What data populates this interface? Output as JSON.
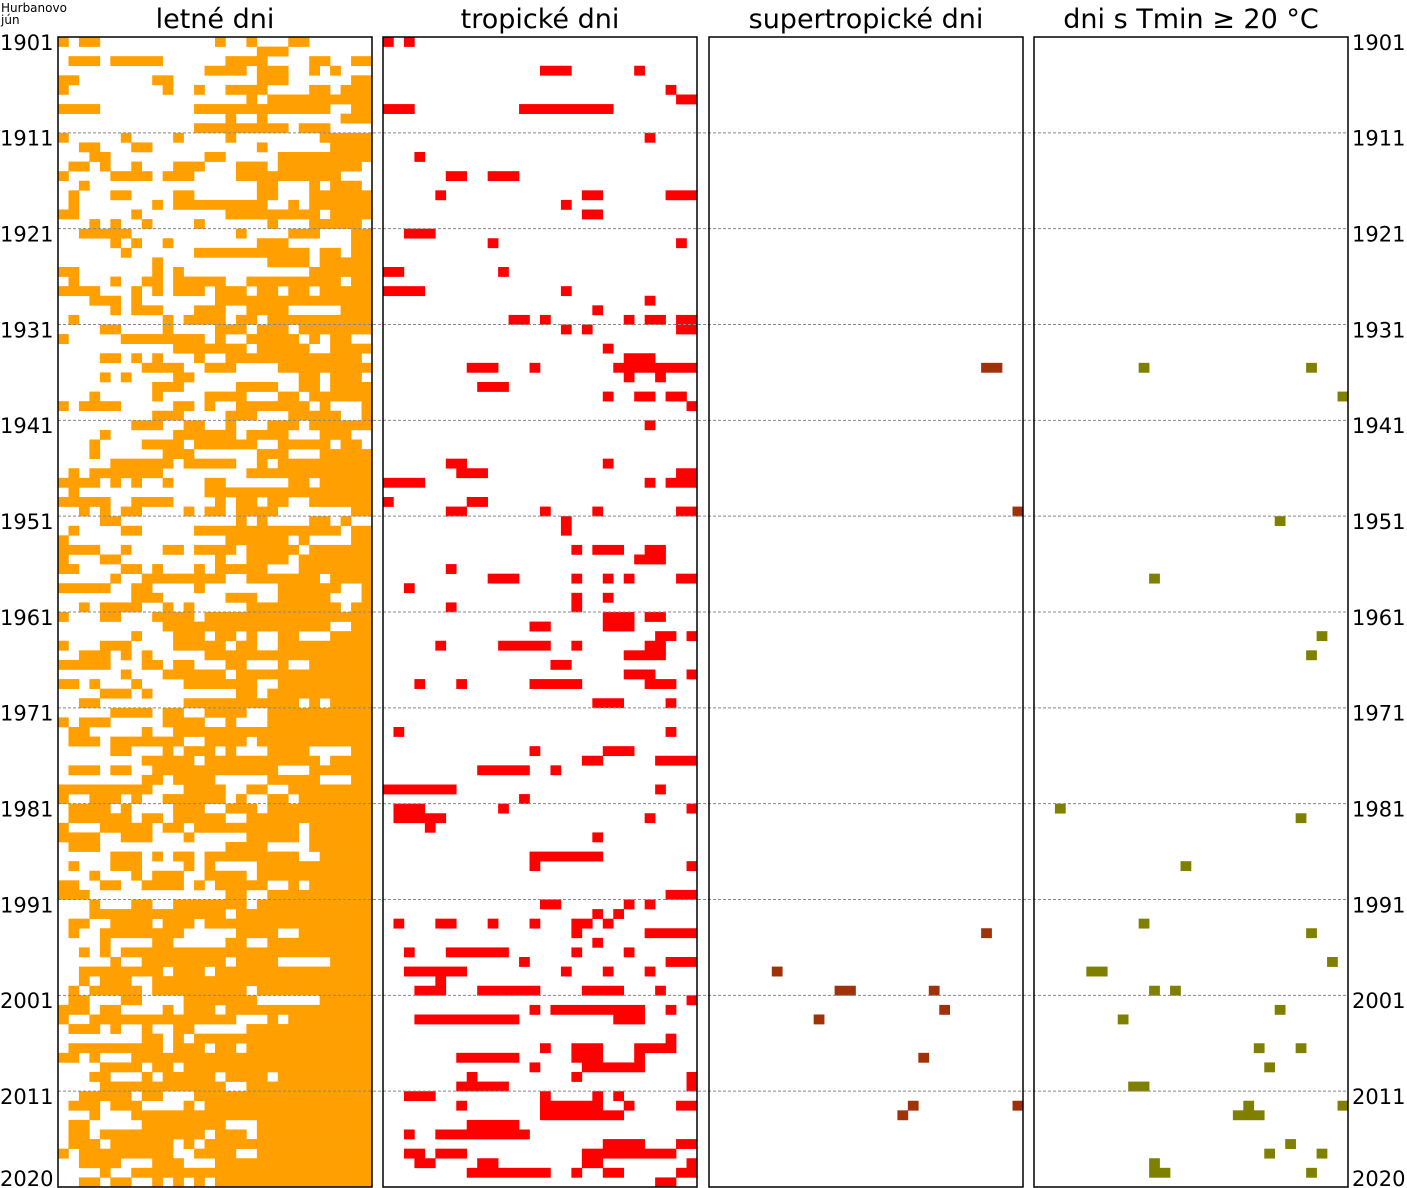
{
  "chart_data": {
    "type": "heatmap",
    "station": "Hurbanovo",
    "month": "jún",
    "years": [
      1901,
      2020
    ],
    "days": [
      1,
      30
    ],
    "year_tick_labels": [
      "1901",
      "1911",
      "1921",
      "1931",
      "1941",
      "1951",
      "1961",
      "1971",
      "1981",
      "1991",
      "2001",
      "2011",
      "2020"
    ],
    "grid": "dashed horizontal every 10 years",
    "panels": [
      {
        "title": "letné dni",
        "color": "#ff9f00",
        "fill_note_density": 0.45
      },
      {
        "title": "tropické dni",
        "color": "#ff0000",
        "cells": [
          [
            1901,
            1,
            1
          ],
          [
            1901,
            3,
            3
          ],
          [
            1904,
            16,
            18
          ],
          [
            1904,
            25,
            25
          ],
          [
            1906,
            28,
            28
          ],
          [
            1907,
            29,
            30
          ],
          [
            1908,
            1,
            3
          ],
          [
            1908,
            14,
            22
          ],
          [
            1911,
            26,
            26
          ],
          [
            1913,
            4,
            4
          ],
          [
            1915,
            7,
            8
          ],
          [
            1915,
            11,
            13
          ],
          [
            1917,
            6,
            6
          ],
          [
            1917,
            20,
            21
          ],
          [
            1917,
            28,
            30
          ],
          [
            1918,
            18,
            18
          ],
          [
            1919,
            20,
            21
          ],
          [
            1921,
            3,
            5
          ],
          [
            1922,
            11,
            11
          ],
          [
            1922,
            29,
            29
          ],
          [
            1925,
            1,
            2
          ],
          [
            1925,
            12,
            12
          ],
          [
            1927,
            1,
            4
          ],
          [
            1927,
            18,
            18
          ],
          [
            1928,
            26,
            26
          ],
          [
            1929,
            21,
            21
          ],
          [
            1930,
            13,
            14
          ],
          [
            1930,
            16,
            16
          ],
          [
            1930,
            24,
            24
          ],
          [
            1930,
            26,
            27
          ],
          [
            1930,
            29,
            30
          ],
          [
            1931,
            18,
            18
          ],
          [
            1931,
            20,
            20
          ],
          [
            1931,
            29,
            30
          ],
          [
            1933,
            22,
            22
          ],
          [
            1934,
            24,
            26
          ],
          [
            1935,
            9,
            11
          ],
          [
            1935,
            15,
            15
          ],
          [
            1935,
            23,
            30
          ],
          [
            1936,
            24,
            24
          ],
          [
            1936,
            27,
            27
          ],
          [
            1937,
            10,
            12
          ],
          [
            1938,
            22,
            22
          ],
          [
            1938,
            25,
            26
          ],
          [
            1938,
            28,
            29
          ],
          [
            1939,
            30,
            30
          ],
          [
            1941,
            26,
            26
          ],
          [
            1945,
            7,
            8
          ],
          [
            1945,
            22,
            22
          ],
          [
            1946,
            8,
            10
          ],
          [
            1946,
            29,
            30
          ],
          [
            1947,
            1,
            4
          ],
          [
            1947,
            26,
            26
          ],
          [
            1947,
            28,
            30
          ],
          [
            1949,
            1,
            1
          ],
          [
            1949,
            9,
            10
          ],
          [
            1950,
            7,
            8
          ],
          [
            1950,
            16,
            16
          ],
          [
            1950,
            21,
            21
          ],
          [
            1950,
            29,
            30
          ],
          [
            1951,
            18,
            18
          ],
          [
            1952,
            18,
            18
          ],
          [
            1954,
            19,
            19
          ],
          [
            1954,
            21,
            23
          ],
          [
            1954,
            26,
            27
          ],
          [
            1955,
            25,
            27
          ],
          [
            1956,
            7,
            7
          ],
          [
            1957,
            11,
            13
          ],
          [
            1957,
            19,
            19
          ],
          [
            1957,
            22,
            22
          ],
          [
            1957,
            24,
            24
          ],
          [
            1957,
            29,
            30
          ],
          [
            1958,
            3,
            3
          ],
          [
            1959,
            19,
            19
          ],
          [
            1959,
            22,
            22
          ],
          [
            1960,
            7,
            7
          ],
          [
            1960,
            19,
            19
          ],
          [
            1961,
            22,
            24
          ],
          [
            1961,
            26,
            27
          ],
          [
            1962,
            15,
            16
          ],
          [
            1962,
            22,
            24
          ],
          [
            1963,
            27,
            28
          ],
          [
            1963,
            30,
            30
          ],
          [
            1964,
            6,
            6
          ],
          [
            1964,
            12,
            16
          ],
          [
            1964,
            19,
            19
          ],
          [
            1964,
            26,
            27
          ],
          [
            1965,
            24,
            27
          ],
          [
            1966,
            17,
            18
          ],
          [
            1967,
            24,
            26
          ],
          [
            1967,
            30,
            30
          ],
          [
            1968,
            4,
            4
          ],
          [
            1968,
            8,
            8
          ],
          [
            1968,
            15,
            19
          ],
          [
            1968,
            26,
            28
          ],
          [
            1970,
            21,
            23
          ],
          [
            1970,
            28,
            28
          ],
          [
            1973,
            2,
            2
          ],
          [
            1973,
            28,
            28
          ],
          [
            1975,
            15,
            15
          ],
          [
            1975,
            22,
            24
          ],
          [
            1976,
            20,
            21
          ],
          [
            1976,
            27,
            30
          ],
          [
            1977,
            10,
            14
          ],
          [
            1977,
            17,
            17
          ],
          [
            1979,
            1,
            7
          ],
          [
            1979,
            27,
            27
          ],
          [
            1980,
            14,
            14
          ],
          [
            1981,
            2,
            4
          ],
          [
            1981,
            12,
            12
          ],
          [
            1981,
            30,
            30
          ],
          [
            1982,
            2,
            6
          ],
          [
            1982,
            26,
            26
          ],
          [
            1983,
            5,
            5
          ],
          [
            1984,
            21,
            21
          ],
          [
            1986,
            15,
            21
          ],
          [
            1987,
            15,
            15
          ],
          [
            1987,
            30,
            30
          ],
          [
            1990,
            28,
            30
          ],
          [
            1991,
            16,
            17
          ],
          [
            1991,
            24,
            24
          ],
          [
            1991,
            26,
            26
          ],
          [
            1992,
            21,
            21
          ],
          [
            1992,
            23,
            23
          ],
          [
            1993,
            2,
            2
          ],
          [
            1993,
            6,
            7
          ],
          [
            1993,
            11,
            11
          ],
          [
            1993,
            15,
            15
          ],
          [
            1993,
            19,
            20
          ],
          [
            1993,
            22,
            22
          ],
          [
            1994,
            19,
            19
          ],
          [
            1994,
            26,
            30
          ],
          [
            1995,
            21,
            21
          ],
          [
            1996,
            3,
            3
          ],
          [
            1996,
            7,
            12
          ],
          [
            1996,
            19,
            19
          ],
          [
            1996,
            24,
            24
          ],
          [
            1997,
            14,
            14
          ],
          [
            1997,
            28,
            30
          ],
          [
            1998,
            3,
            8
          ],
          [
            1998,
            18,
            18
          ],
          [
            1998,
            22,
            22
          ],
          [
            1998,
            26,
            26
          ],
          [
            1999,
            6,
            6
          ],
          [
            2000,
            4,
            6
          ],
          [
            2000,
            10,
            15
          ],
          [
            2000,
            20,
            23
          ],
          [
            2000,
            27,
            27
          ],
          [
            2001,
            30,
            30
          ],
          [
            2002,
            15,
            15
          ],
          [
            2002,
            17,
            25
          ],
          [
            2002,
            28,
            28
          ],
          [
            2003,
            4,
            13
          ],
          [
            2003,
            23,
            25
          ],
          [
            2005,
            28,
            28
          ],
          [
            2006,
            16,
            16
          ],
          [
            2006,
            19,
            21
          ],
          [
            2006,
            25,
            28
          ],
          [
            2007,
            8,
            13
          ],
          [
            2007,
            19,
            21
          ],
          [
            2007,
            25,
            25
          ],
          [
            2008,
            15,
            15
          ],
          [
            2008,
            20,
            25
          ],
          [
            2009,
            9,
            9
          ],
          [
            2009,
            19,
            19
          ],
          [
            2009,
            30,
            30
          ],
          [
            2010,
            8,
            12
          ],
          [
            2010,
            30,
            30
          ],
          [
            2011,
            3,
            5
          ],
          [
            2011,
            16,
            16
          ],
          [
            2011,
            21,
            21
          ],
          [
            2011,
            23,
            23
          ],
          [
            2012,
            8,
            8
          ],
          [
            2012,
            16,
            21
          ],
          [
            2012,
            24,
            24
          ],
          [
            2012,
            29,
            30
          ],
          [
            2013,
            16,
            23
          ],
          [
            2014,
            9,
            13
          ],
          [
            2015,
            3,
            3
          ],
          [
            2015,
            6,
            14
          ],
          [
            2016,
            22,
            25
          ],
          [
            2016,
            29,
            30
          ],
          [
            2017,
            3,
            4
          ],
          [
            2017,
            6,
            8
          ],
          [
            2017,
            20,
            28
          ],
          [
            2018,
            4,
            5
          ],
          [
            2018,
            10,
            11
          ],
          [
            2018,
            20,
            21
          ],
          [
            2018,
            30,
            30
          ],
          [
            2019,
            9,
            16
          ],
          [
            2019,
            19,
            19
          ],
          [
            2019,
            22,
            23
          ],
          [
            2019,
            29,
            30
          ],
          [
            2020,
            27,
            28
          ]
        ]
      },
      {
        "title": "supertropické dni",
        "color": "#a0320a",
        "cells": [
          [
            1935,
            27,
            28
          ],
          [
            1950,
            30,
            30
          ],
          [
            1994,
            27,
            27
          ],
          [
            1998,
            7,
            7
          ],
          [
            2000,
            13,
            14
          ],
          [
            2000,
            22,
            22
          ],
          [
            2002,
            23,
            23
          ],
          [
            2003,
            11,
            11
          ],
          [
            2007,
            21,
            21
          ],
          [
            2012,
            20,
            20
          ],
          [
            2012,
            30,
            30
          ],
          [
            2013,
            19,
            19
          ]
        ]
      },
      {
        "title": "dni s Tmin ≥ 20 °C",
        "color": "#808000",
        "cells": [
          [
            1935,
            11,
            11
          ],
          [
            1935,
            27,
            27
          ],
          [
            1938,
            30,
            30
          ],
          [
            1951,
            24,
            24
          ],
          [
            1957,
            12,
            12
          ],
          [
            1963,
            28,
            28
          ],
          [
            1965,
            27,
            27
          ],
          [
            1981,
            3,
            3
          ],
          [
            1982,
            26,
            26
          ],
          [
            1987,
            15,
            15
          ],
          [
            1993,
            11,
            11
          ],
          [
            1994,
            27,
            27
          ],
          [
            1997,
            29,
            29
          ],
          [
            1998,
            6,
            7
          ],
          [
            2000,
            12,
            12
          ],
          [
            2000,
            14,
            14
          ],
          [
            2002,
            24,
            24
          ],
          [
            2003,
            9,
            9
          ],
          [
            2006,
            22,
            22
          ],
          [
            2006,
            26,
            26
          ],
          [
            2008,
            23,
            23
          ],
          [
            2010,
            10,
            11
          ],
          [
            2012,
            21,
            21
          ],
          [
            2012,
            30,
            30
          ],
          [
            2013,
            20,
            22
          ],
          [
            2016,
            25,
            25
          ],
          [
            2017,
            23,
            23
          ],
          [
            2017,
            28,
            28
          ],
          [
            2018,
            12,
            12
          ],
          [
            2019,
            12,
            13
          ],
          [
            2019,
            27,
            27
          ]
        ]
      }
    ]
  }
}
